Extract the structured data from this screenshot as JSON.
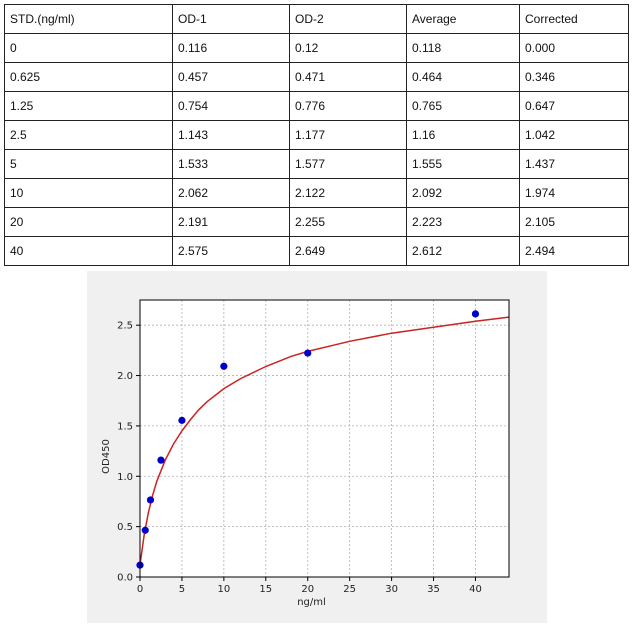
{
  "table": {
    "headers": [
      "STD.(ng/ml)",
      "OD-1",
      "OD-2",
      "Average",
      "Corrected"
    ],
    "rows": [
      [
        "0",
        "0.116",
        "0.12",
        "0.118",
        "0.000"
      ],
      [
        "0.625",
        "0.457",
        "0.471",
        "0.464",
        "0.346"
      ],
      [
        "1.25",
        "0.754",
        "0.776",
        "0.765",
        "0.647"
      ],
      [
        "2.5",
        "1.143",
        "1.177",
        "1.16",
        "1.042"
      ],
      [
        "5",
        "1.533",
        "1.577",
        "1.555",
        "1.437"
      ],
      [
        "10",
        "2.062",
        "2.122",
        "2.092",
        "1.974"
      ],
      [
        "20",
        "2.191",
        "2.255",
        "2.223",
        "2.105"
      ],
      [
        "40",
        "2.575",
        "2.649",
        "2.612",
        "2.494"
      ]
    ]
  },
  "chart_data": {
    "type": "scatter",
    "title": "",
    "xlabel": "ng/ml",
    "ylabel": "OD450",
    "xlim": [
      0,
      44
    ],
    "ylim": [
      0,
      2.75
    ],
    "xticks": [
      0,
      5,
      10,
      15,
      20,
      25,
      30,
      35,
      40
    ],
    "yticks": [
      0.0,
      0.5,
      1.0,
      1.5,
      2.0,
      2.5
    ],
    "xtick_labels": [
      "0",
      "5",
      "10",
      "15",
      "20",
      "25",
      "30",
      "35",
      "40"
    ],
    "ytick_labels": [
      "0.0",
      "0.5",
      "1.0",
      "1.5",
      "2.0",
      "2.5"
    ],
    "grid": true,
    "series": [
      {
        "kind": "points",
        "color": "#0000cc",
        "x": [
          0,
          0.625,
          1.25,
          2.5,
          5,
          10,
          20,
          40
        ],
        "y": [
          0.118,
          0.464,
          0.765,
          1.16,
          1.555,
          2.092,
          2.223,
          2.612
        ]
      },
      {
        "kind": "fit-curve",
        "color": "#cc2222",
        "x": [
          0,
          0.5,
          1,
          1.5,
          2,
          3,
          4,
          5,
          6,
          7,
          8,
          10,
          12,
          15,
          18,
          20,
          25,
          30,
          35,
          40,
          44
        ],
        "y": [
          0.12,
          0.42,
          0.64,
          0.81,
          0.95,
          1.16,
          1.32,
          1.45,
          1.56,
          1.66,
          1.74,
          1.87,
          1.97,
          2.09,
          2.19,
          2.24,
          2.34,
          2.42,
          2.48,
          2.54,
          2.58
        ]
      }
    ]
  }
}
